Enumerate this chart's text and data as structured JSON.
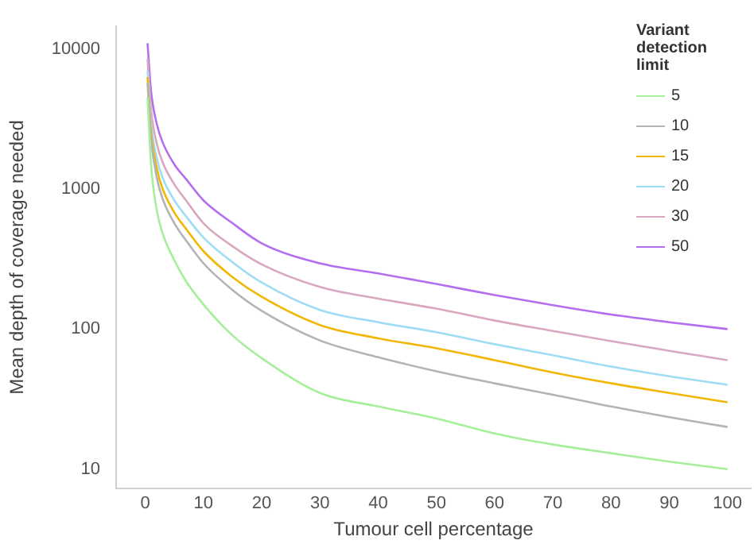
{
  "chart_data": {
    "type": "line",
    "xlabel": "Tumour cell percentage",
    "ylabel": "Mean depth of coverage needed",
    "legend_title": "Variant detection limit",
    "x": [
      0.4,
      1,
      2,
      3,
      5,
      7,
      10,
      15,
      20,
      30,
      40,
      50,
      60,
      70,
      80,
      90,
      100
    ],
    "series": [
      {
        "name": "5",
        "color": "#a6ef9a",
        "values": [
          4500,
          1500,
          700,
          480,
          310,
          220,
          150,
          90,
          62,
          35,
          28,
          23,
          18,
          15,
          13,
          11.3,
          10
        ]
      },
      {
        "name": "10",
        "color": "#b3b3b8",
        "values": [
          5700,
          2300,
          1200,
          850,
          570,
          430,
          295,
          190,
          135,
          83,
          63,
          50,
          41,
          34,
          28,
          23.5,
          20
        ]
      },
      {
        "name": "15",
        "color": "#f2b705",
        "values": [
          6300,
          2600,
          1400,
          1000,
          680,
          520,
          360,
          235,
          170,
          107,
          86,
          73,
          60,
          49,
          41,
          35,
          30
        ]
      },
      {
        "name": "20",
        "color": "#9fdcf5",
        "values": [
          7000,
          3000,
          1650,
          1200,
          830,
          640,
          450,
          300,
          215,
          137,
          112,
          95,
          78,
          65,
          54,
          46,
          40
        ]
      },
      {
        "name": "30",
        "color": "#d9a8c0",
        "values": [
          8500,
          3700,
          2100,
          1550,
          1080,
          830,
          570,
          390,
          290,
          200,
          165,
          140,
          115,
          97,
          82,
          70,
          60
        ]
      },
      {
        "name": "50",
        "color": "#b36ef0",
        "values": [
          11000,
          5000,
          2900,
          2150,
          1500,
          1180,
          830,
          570,
          410,
          295,
          250,
          210,
          175,
          148,
          127,
          112,
          100
        ]
      }
    ],
    "xlim": [
      -5,
      104
    ],
    "xticks": [
      0,
      10,
      20,
      30,
      40,
      50,
      60,
      70,
      80,
      90,
      100
    ],
    "ylim": [
      7.3,
      14500
    ],
    "yticks": [
      10,
      100,
      1000,
      10000
    ],
    "log": "y",
    "grid": false,
    "legend": "top right",
    "marker": "none",
    "line_style": "solid"
  }
}
